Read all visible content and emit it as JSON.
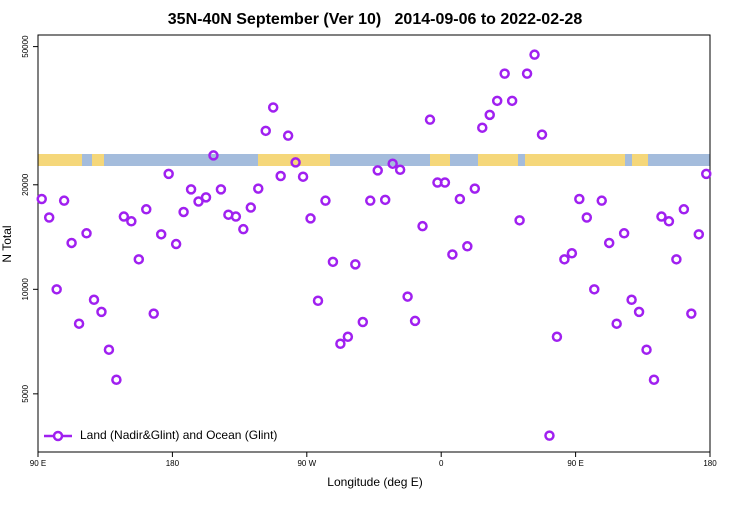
{
  "chart_data": {
    "type": "scatter",
    "title": "35N-40N September (Ver 10)   2014-09-06 to 2022-02-28",
    "xlabel": "Longitude (deg E)",
    "ylabel": "N Total",
    "xlim": [
      90,
      540
    ],
    "ylim": [
      3400,
      54000
    ],
    "ylog": true,
    "grid": false,
    "legend": "bottom-left",
    "xticks": [
      {
        "value": 90,
        "label": "90 E"
      },
      180,
      {
        "value": 270,
        "label": "90 W"
      },
      {
        "value": 360,
        "label": "0"
      },
      {
        "value": 450,
        "label": "90 E"
      },
      {
        "value": 540,
        "label": "180"
      }
    ],
    "yticks": [
      5000,
      10000,
      20000,
      50000
    ],
    "series": [
      {
        "name": "Land (Nadir&Glint) and Ocean (Glint)",
        "color": "#a020f0",
        "x": [
          92.5,
          97.5,
          102.5,
          107.5,
          112.5,
          117.5,
          122.5,
          127.5,
          132.5,
          137.5,
          142.5,
          147.5,
          152.5,
          157.5,
          162.5,
          167.5,
          172.5,
          177.5,
          182.5,
          187.5,
          192.5,
          197.5,
          202.5,
          207.5,
          212.5,
          217.5,
          222.5,
          227.5,
          232.5,
          237.5,
          242.5,
          247.5,
          252.5,
          257.5,
          262.5,
          267.5,
          272.5,
          277.5,
          282.5,
          287.5,
          292.5,
          297.5,
          302.5,
          307.5,
          312.5,
          317.5,
          322.5,
          327.5,
          332.5,
          337.5,
          342.5,
          347.5,
          352.5,
          357.5,
          362.5,
          367.5,
          372.5,
          377.5,
          382.5,
          387.5,
          392.5,
          397.5,
          402.5,
          407.5,
          412.5,
          417.5,
          422.5,
          427.5,
          432.5,
          437.5,
          442.5,
          447.5,
          452.5,
          457.5,
          462.5,
          467.5,
          472.5,
          477.5,
          482.5,
          487.5,
          492.5,
          497.5,
          502.5,
          507.5,
          512.5,
          517.5,
          522.5,
          527.5,
          532.5,
          537.5
        ],
        "values": [
          18200,
          16100,
          10000,
          18000,
          13600,
          7960,
          14500,
          9330,
          8610,
          6700,
          5490,
          16200,
          15700,
          12200,
          17000,
          8510,
          14400,
          21500,
          13500,
          16700,
          19400,
          17900,
          18400,
          24300,
          19400,
          16400,
          16200,
          14900,
          17200,
          19500,
          28600,
          33400,
          21200,
          27700,
          23200,
          21100,
          16000,
          9270,
          18000,
          12000,
          6970,
          7300,
          11800,
          8050,
          18000,
          22000,
          18100,
          23000,
          22100,
          9530,
          8110,
          15200,
          30800,
          20300,
          20300,
          12600,
          18200,
          13300,
          19500,
          29200,
          31800,
          34900,
          41800,
          34900,
          15800,
          41800,
          47400,
          27900,
          3790,
          7300,
          12200,
          12700,
          18200,
          16100,
          10000,
          18000,
          13600,
          7960,
          14500,
          9330,
          8610,
          6700,
          5490,
          16200,
          15700,
          12200,
          17000,
          8510,
          14400,
          21500
        ]
      }
    ]
  }
}
